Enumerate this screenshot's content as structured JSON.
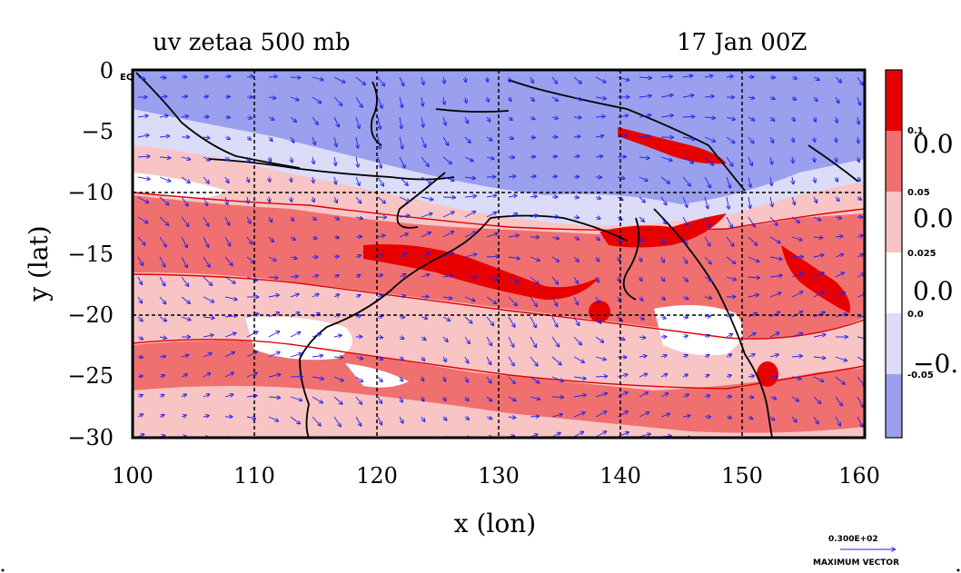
{
  "title_left": "uv zetaa 500 mb",
  "title_right": "17 Jan 00Z",
  "xlabel": "x (lon)",
  "ylabel": "y (lat)",
  "eq_label": "EQ",
  "x_ticks": [
    "100",
    "110",
    "120",
    "130",
    "140",
    "150",
    "160"
  ],
  "y_ticks": [
    "0",
    "−5",
    "−10",
    "−15",
    "−20",
    "−25",
    "−30"
  ],
  "colorbar": {
    "small_labels": [
      "0.1",
      "0.05",
      "0.025",
      "0.0",
      "-0.05"
    ],
    "big_labels": [
      "0.0",
      "0.0",
      "0.0",
      "−0."
    ],
    "colors": [
      "#e80000",
      "#f07070",
      "#f8c4c4",
      "#ffffff",
      "#dcdcf8",
      "#9aa0ee"
    ]
  },
  "vector_ref": {
    "value": "0.300E+02",
    "label": "MAXIMUM VECTOR"
  },
  "map_colors": {
    "strong": "#e80000",
    "mid": "#f07070",
    "light": "#f8c4c4",
    "neg_light": "#dcdcf8",
    "neg": "#9aa0ee",
    "arrow": "#2222ee"
  }
}
